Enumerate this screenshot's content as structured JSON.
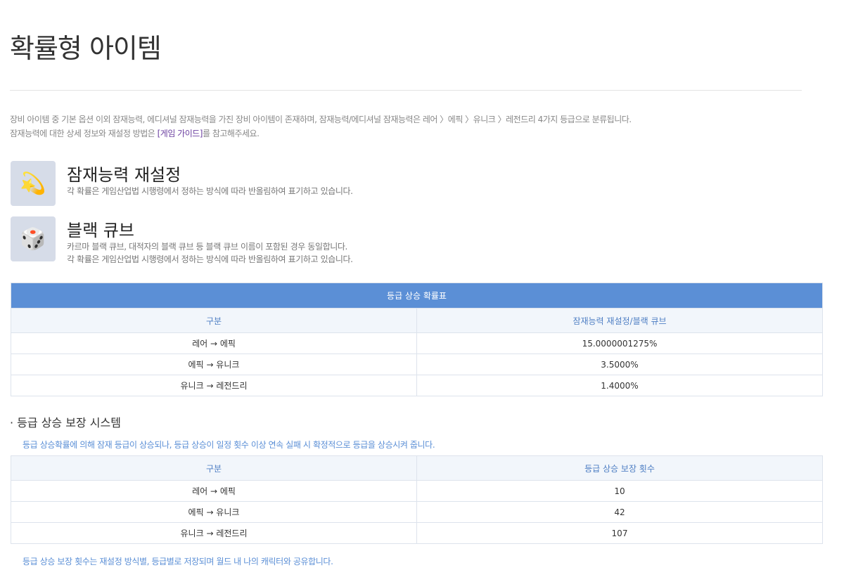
{
  "title": "확률형 아이템",
  "intro": {
    "line1": "장비 아이템 중 기본 옵션 이외 잠재능력, 에디셔널 잠재능력을 가진 장비 아이템이 존재하며, 잠재능력/에디셔널 잠재능력은 레어 〉에픽 〉유니크 〉레전드리 4가지 등급으로 분류됩니다.",
    "line2_pre": "잠재능력에 대한 상세 정보와 재설정 방법은 ",
    "link": "[게임 가이드]",
    "line2_post": "를 참고해주세요."
  },
  "sections": [
    {
      "icon": "potential-reset-icon",
      "title": "잠재능력 재설정",
      "desc": [
        "각 확률은 게임산업법 시행령에서 정하는 방식에 따라 반올림하여 표기하고 있습니다."
      ]
    },
    {
      "icon": "black-cube-icon",
      "title": "블랙 큐브",
      "desc": [
        "카르마 블랙 큐브, 대적자의 블랙 큐브 등 블랙 큐브 이름이 포함된 경우 동일합니다.",
        "각 확률은 게임산업법 시행령에서 정하는 방식에 따라 반올림하여 표기하고 있습니다."
      ]
    }
  ],
  "table1": {
    "caption": "등급 상승 확률표",
    "headers": [
      "구분",
      "잠재능력 재설정/블랙 큐브"
    ],
    "rows": [
      [
        "레어 → 에픽",
        "15.0000001275%"
      ],
      [
        "에픽 → 유니크",
        "3.5000%"
      ],
      [
        "유니크 → 레전드리",
        "1.4000%"
      ]
    ]
  },
  "guarantee": {
    "title": "등급 상승 보장 시스템",
    "desc": "등급 상승확률에 의해 잠재 등급이 상승되나, 등급 상승이 일정 횟수 이상 연속 실패 시 확정적으로 등급을 상승시켜 줍니다.",
    "note": "등급 상승 보장 횟수는 재설정 방식별, 등급별로 저장되며 월드 내 나의 캐릭터와 공유합니다."
  },
  "table2": {
    "headers": [
      "구분",
      "등급 상승 보장 횟수"
    ],
    "rows": [
      [
        "레어 → 에픽",
        "10"
      ],
      [
        "에픽 → 유니크",
        "42"
      ],
      [
        "유니크 → 레전드리",
        "107"
      ]
    ]
  }
}
